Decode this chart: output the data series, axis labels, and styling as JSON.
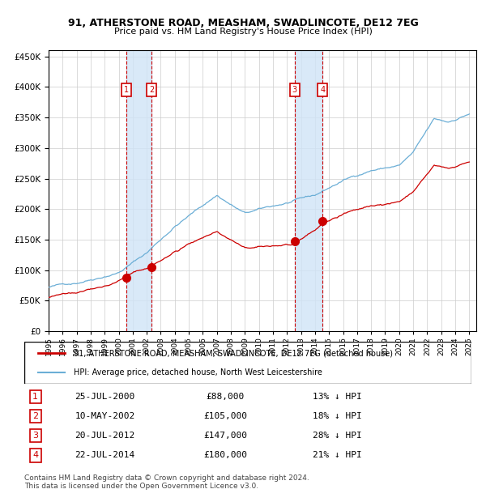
{
  "title1": "91, ATHERSTONE ROAD, MEASHAM, SWADLINCOTE, DE12 7EG",
  "title2": "Price paid vs. HM Land Registry's House Price Index (HPI)",
  "legend_house": "91, ATHERSTONE ROAD, MEASHAM, SWADLINCOTE, DE12 7EG (detached house)",
  "legend_hpi": "HPI: Average price, detached house, North West Leicestershire",
  "footer": "Contains HM Land Registry data © Crown copyright and database right 2024.\nThis data is licensed under the Open Government Licence v3.0.",
  "sales": [
    {
      "num": 1,
      "date": "25-JUL-2000",
      "year": 2000.56,
      "price": 88000,
      "pct": "13% ↓ HPI"
    },
    {
      "num": 2,
      "date": "10-MAY-2002",
      "year": 2002.36,
      "price": 105000,
      "pct": "18% ↓ HPI"
    },
    {
      "num": 3,
      "date": "20-JUL-2012",
      "year": 2012.55,
      "price": 147000,
      "pct": "28% ↓ HPI"
    },
    {
      "num": 4,
      "date": "22-JUL-2014",
      "year": 2014.55,
      "price": 180000,
      "pct": "21% ↓ HPI"
    }
  ],
  "ylim": [
    0,
    460000
  ],
  "yticks": [
    0,
    50000,
    100000,
    150000,
    200000,
    250000,
    300000,
    350000,
    400000,
    450000
  ],
  "hpi_color": "#6baed6",
  "house_color": "#cc0000",
  "dot_color": "#cc0000",
  "vline_color": "#cc0000",
  "shade_color": "#d0e4f7",
  "grid_color": "#cccccc",
  "label_box_color": "#cc0000",
  "background_color": "#ffffff"
}
